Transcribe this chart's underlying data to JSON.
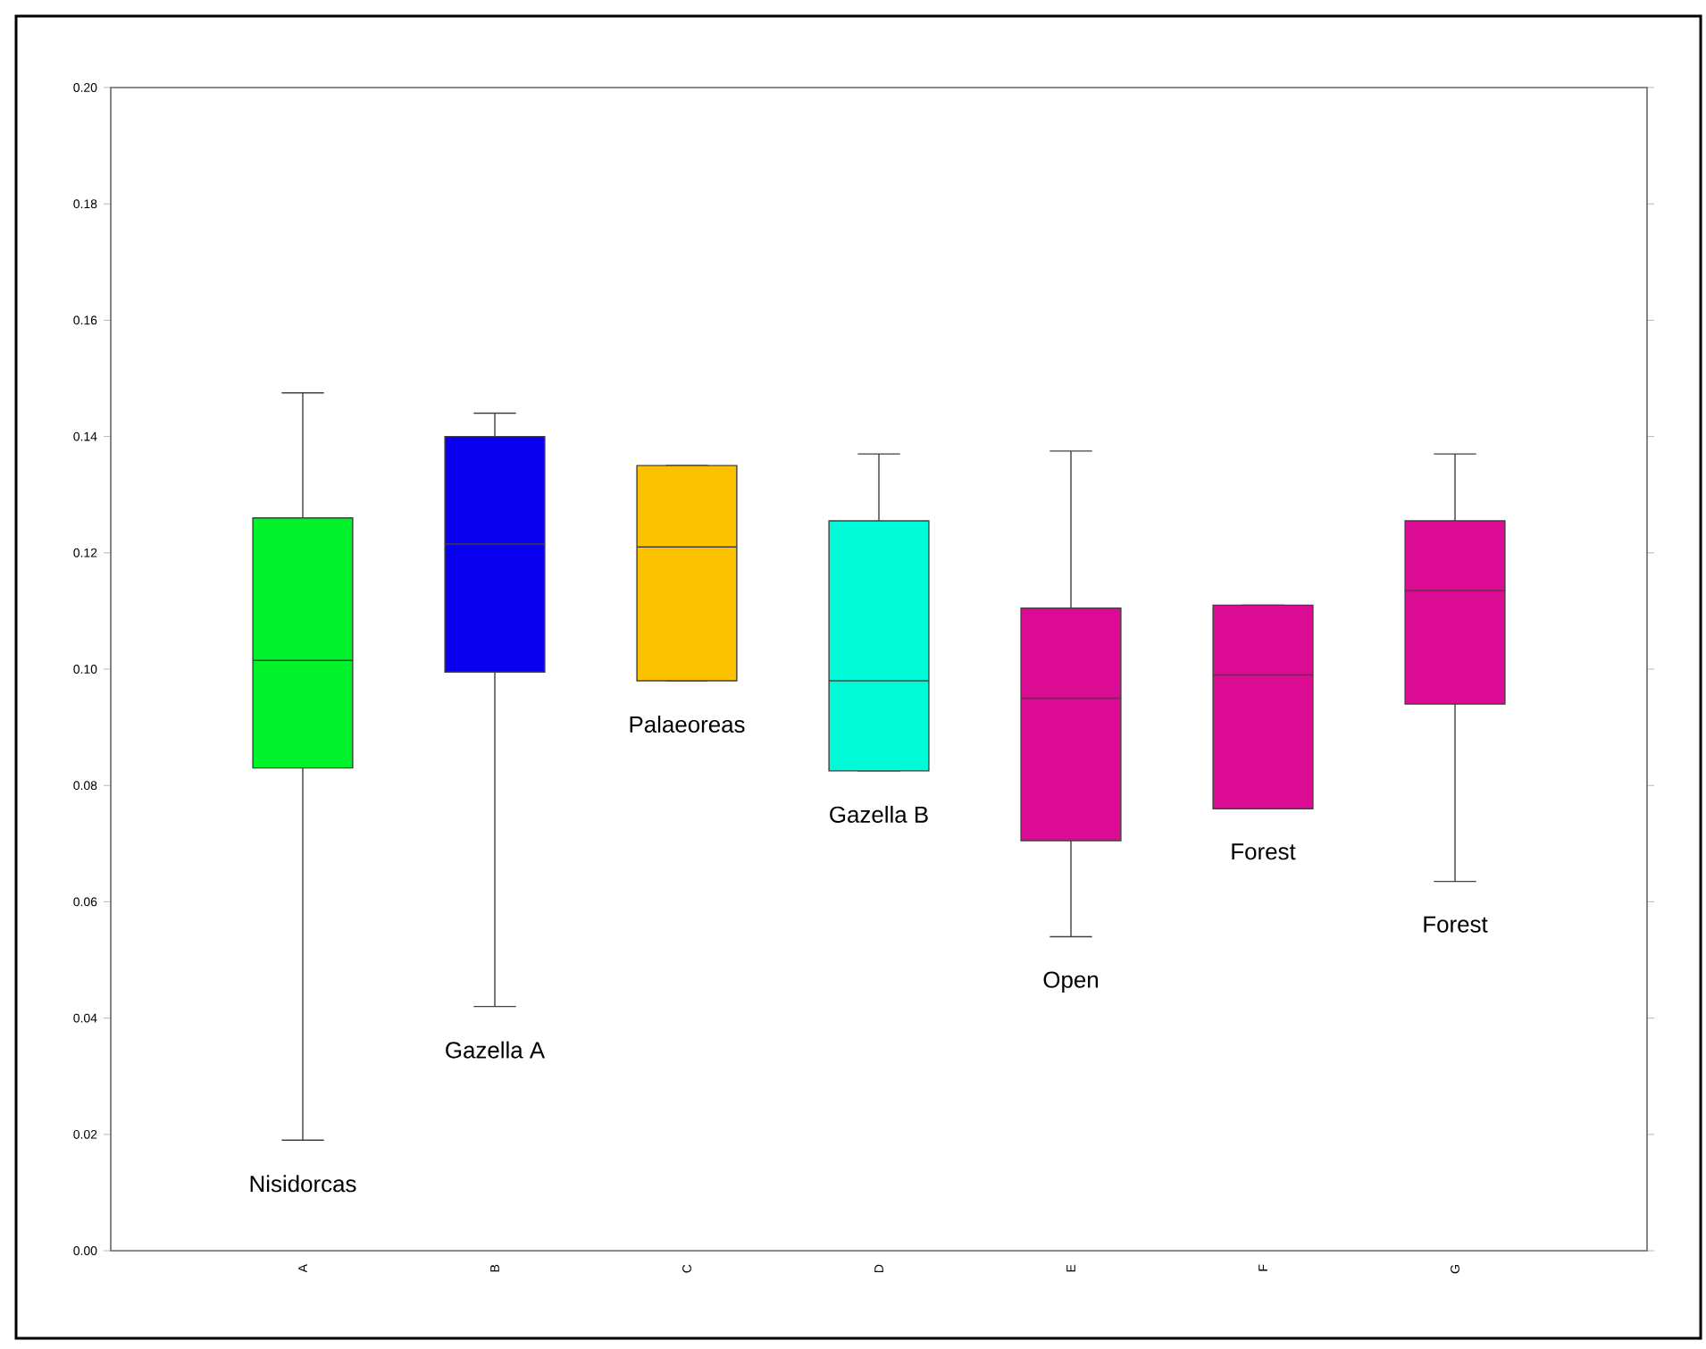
{
  "chart_data": {
    "type": "box",
    "categories": [
      "A",
      "B",
      "C",
      "D",
      "E",
      "F",
      "G"
    ],
    "colors": [
      "#00f22a",
      "#0a00f0",
      "#fcc200",
      "#00fad8",
      "#db0c93",
      "#db0c93",
      "#db0c93"
    ],
    "boxes": [
      {
        "low": 0.019,
        "q1": 0.083,
        "median": 0.1015,
        "q3": 0.126,
        "high": 0.1475
      },
      {
        "low": 0.042,
        "q1": 0.0995,
        "median": 0.1215,
        "q3": 0.14,
        "high": 0.144
      },
      {
        "low": 0.098,
        "q1": 0.098,
        "median": 0.121,
        "q3": 0.135,
        "high": 0.135
      },
      {
        "low": 0.0825,
        "q1": 0.0825,
        "median": 0.098,
        "q3": 0.1255,
        "high": 0.137
      },
      {
        "low": 0.054,
        "q1": 0.0705,
        "median": 0.095,
        "q3": 0.1105,
        "high": 0.1375
      },
      {
        "low": 0.076,
        "q1": 0.076,
        "median": 0.099,
        "q3": 0.111,
        "high": 0.111
      },
      {
        "low": 0.0635,
        "q1": 0.094,
        "median": 0.1135,
        "q3": 0.1255,
        "high": 0.137
      }
    ],
    "ylim": [
      0,
      0.2
    ],
    "yticks": [
      {
        "value": 0,
        "label": "0.00"
      },
      {
        "value": 0.02,
        "label": "0.02"
      },
      {
        "value": 0.04,
        "label": "0.04"
      },
      {
        "value": 0.06,
        "label": "0.06"
      },
      {
        "value": 0.08,
        "label": "0.08"
      },
      {
        "value": 0.1,
        "label": "0.10"
      },
      {
        "value": 0.12,
        "label": "0.12"
      },
      {
        "value": 0.14,
        "label": "0.14"
      },
      {
        "value": 0.16,
        "label": "0.16"
      },
      {
        "value": 0.18,
        "label": "0.18"
      },
      {
        "value": 0.2,
        "label": "0.20"
      }
    ],
    "grid": false,
    "annotations": [
      "Nisidorcas",
      "Gazella A",
      "Palaeoreas",
      "Gazella B",
      "Open",
      "Forest",
      "Forest"
    ]
  }
}
